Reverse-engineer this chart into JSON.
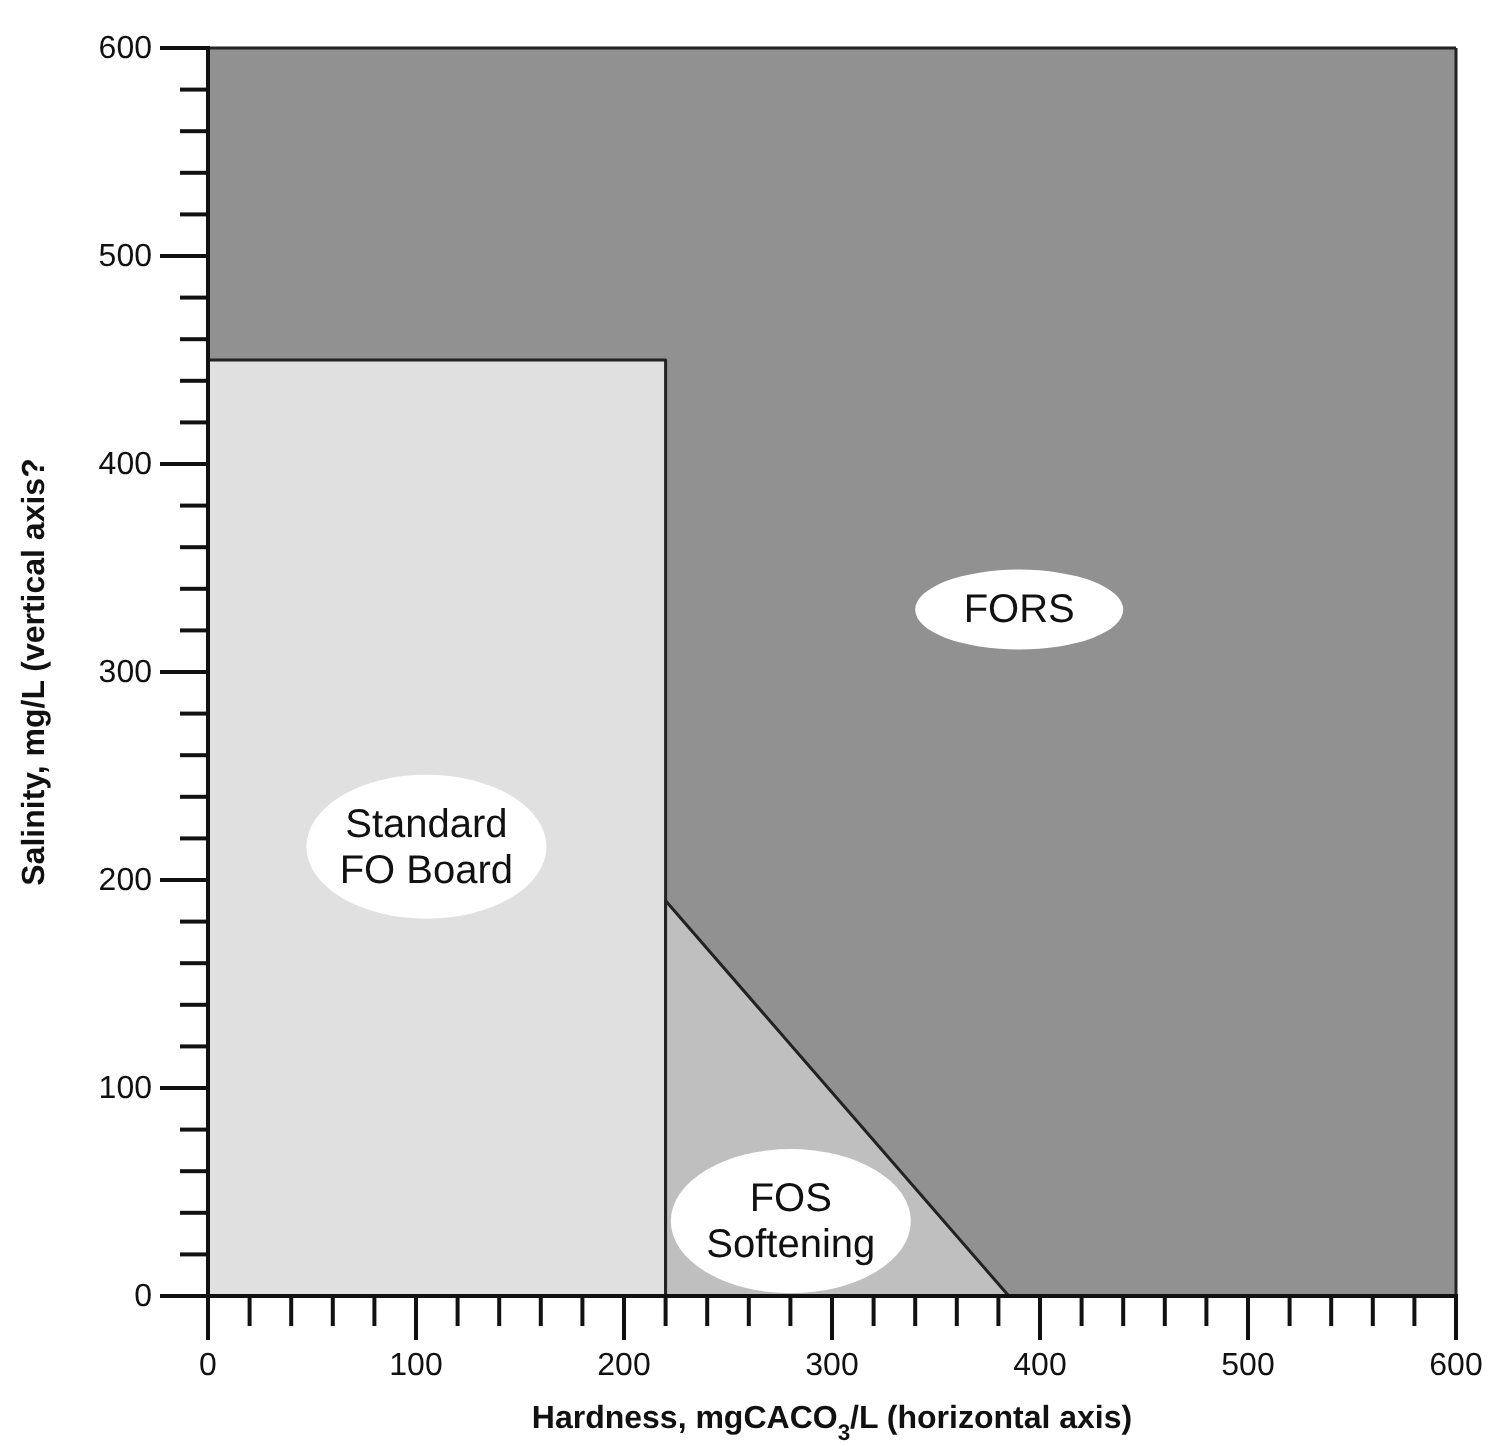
{
  "chart_data": {
    "type": "area",
    "xlabel": "Hardness, mgCACO$_{3}$/L (horizontal axis)",
    "ylabel": "Salinity, mg/L (vertical axis?",
    "bands": [
      {
        "axis": "x",
        "from": 0,
        "to": 600,
        "label": "FORS",
        "color": "#919191"
      }
    ],
    "series": [
      {
        "name": "Standard FO Board",
        "color": "#e0e0e0",
        "x": [
          0,
          220
        ],
        "values": [
          450,
          450
        ]
      },
      {
        "name": "FOS Softening",
        "color": "#bfbfbf",
        "x": [
          220,
          385
        ],
        "values": [
          190,
          0
        ]
      }
    ],
    "xlim": [
      0,
      600
    ],
    "ylim": [
      0,
      600
    ],
    "xticks": [
      0,
      {
        "value": 20,
        "label": null
      },
      {
        "value": 40,
        "label": null
      },
      {
        "value": 60,
        "label": null
      },
      {
        "value": 80,
        "label": null
      },
      100,
      {
        "value": 120,
        "label": null
      },
      {
        "value": 140,
        "label": null
      },
      {
        "value": 160,
        "label": null
      },
      {
        "value": 180,
        "label": null
      },
      200,
      {
        "value": 220,
        "label": null
      },
      {
        "value": 240,
        "label": null
      },
      {
        "value": 260,
        "label": null
      },
      {
        "value": 280,
        "label": null
      },
      300,
      {
        "value": 320,
        "label": null
      },
      {
        "value": 340,
        "label": null
      },
      {
        "value": 360,
        "label": null
      },
      {
        "value": 380,
        "label": null
      },
      400,
      {
        "value": 420,
        "label": null
      },
      {
        "value": 440,
        "label": null
      },
      {
        "value": 460,
        "label": null
      },
      {
        "value": 480,
        "label": null
      },
      500,
      {
        "value": 520,
        "label": null
      },
      {
        "value": 540,
        "label": null
      },
      {
        "value": 560,
        "label": null
      },
      {
        "value": 580,
        "label": null
      },
      600
    ],
    "yticks": [
      0,
      {
        "value": 20,
        "label": null
      },
      {
        "value": 40,
        "label": null
      },
      {
        "value": 60,
        "label": null
      },
      {
        "value": 80,
        "label": null
      },
      100,
      {
        "value": 120,
        "label": null
      },
      {
        "value": 140,
        "label": null
      },
      {
        "value": 160,
        "label": null
      },
      {
        "value": 180,
        "label": null
      },
      200,
      {
        "value": 220,
        "label": null
      },
      {
        "value": 240,
        "label": null
      },
      {
        "value": 260,
        "label": null
      },
      {
        "value": 280,
        "label": null
      },
      300,
      {
        "value": 320,
        "label": null
      },
      {
        "value": 340,
        "label": null
      },
      {
        "value": 360,
        "label": null
      },
      {
        "value": 380,
        "label": null
      },
      400,
      {
        "value": 420,
        "label": null
      },
      {
        "value": 440,
        "label": null
      },
      {
        "value": 460,
        "label": null
      },
      {
        "value": 480,
        "label": null
      },
      500,
      {
        "value": 520,
        "label": null
      },
      {
        "value": 540,
        "label": null
      },
      {
        "value": 560,
        "label": null
      },
      {
        "value": 580,
        "label": null
      },
      600
    ]
  }
}
